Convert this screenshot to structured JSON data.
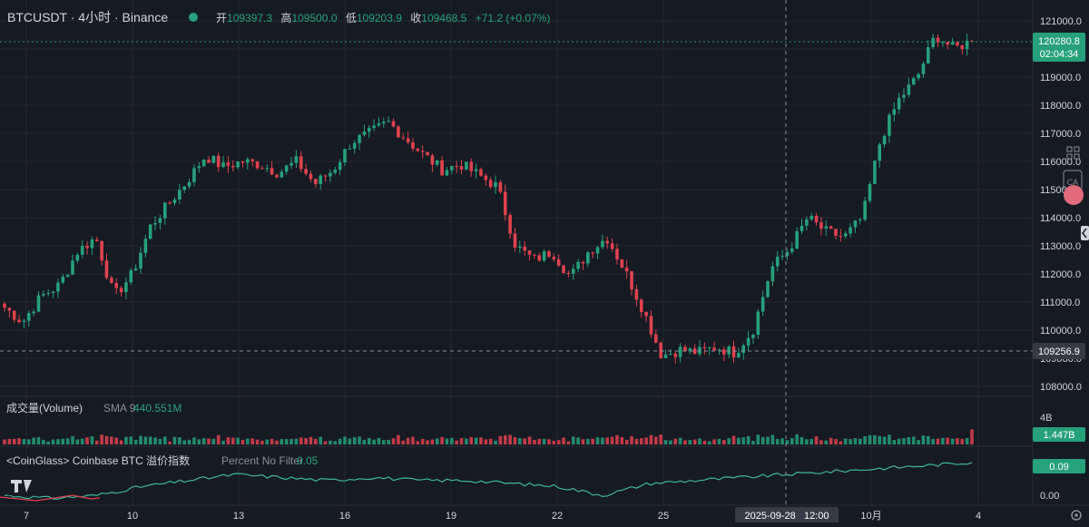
{
  "header": {
    "symbol": "BTCUSDT · 4小时 · Binance",
    "open_label": "开",
    "open_value": "109397.3",
    "high_label": "高",
    "high_value": "109500.0",
    "low_label": "低",
    "low_value": "109203.9",
    "close_label": "收",
    "close_value": "109468.5",
    "change": "+71.2 (+0.07%)"
  },
  "price_axis": {
    "ticks": [
      "121000.0",
      "120000.0",
      "119000.0",
      "118000.0",
      "117000.0",
      "116000.0",
      "115000.0",
      "114000.0",
      "113000.0",
      "112000.0",
      "111000.0",
      "110000.0",
      "109000.0",
      "108000.0"
    ],
    "last_price": "120280.8",
    "countdown": "02:04:34",
    "crosshair_price": "109256.9"
  },
  "volume_pane": {
    "label": "成交量(Volume)",
    "sma_label": "SMA 9",
    "sma_value": "440.551M",
    "axis_tick": "4B",
    "last_value": "1.447B"
  },
  "indicator_pane": {
    "label": "<CoinGlass> Coinbase BTC 溢价指数",
    "param": "Percent No Filter",
    "value": "0.05",
    "axis_tick": "0.00",
    "last_value": "0.09"
  },
  "time_axis": {
    "ticks": [
      "7",
      "10",
      "13",
      "16",
      "19",
      "22",
      "25",
      "10月",
      "4"
    ],
    "crosshair_label": "2025-09-28   12:00"
  },
  "colors": {
    "background": "#161a23",
    "up": "#26a17b",
    "down": "#e0424d",
    "grid": "#232833",
    "text": "#d1d4dc",
    "muted": "#8a8f9c",
    "indicator_line": "#3fb79a"
  },
  "icons": {
    "logo": "tradingview-logo-icon",
    "settings": "gear-icon",
    "toolbar": [
      "grid-icon",
      "wallet-ca-icon",
      "user-avatar-icon",
      "collapse-arrow-icon"
    ]
  },
  "chart_data": {
    "type": "candlestick",
    "symbol": "BTCUSDT",
    "interval": "4h",
    "ylim": [
      108000,
      121000
    ],
    "x": [
      "7",
      "10",
      "13",
      "16",
      "19",
      "22",
      "25",
      "10月",
      "4"
    ],
    "close_path": [
      110800,
      110300,
      111200,
      111600,
      112800,
      113300,
      111200,
      112000,
      113700,
      114500,
      115300,
      116200,
      115800,
      116000,
      115900,
      115600,
      116000,
      115200,
      115700,
      116700,
      117000,
      117400,
      116800,
      116200,
      115700,
      115900,
      115500,
      115100,
      113000,
      112500,
      112800,
      111900,
      112800,
      113300,
      112100,
      110700,
      109100,
      109300,
      109200,
      109400,
      109200,
      110000,
      112200,
      112900,
      114000,
      113500,
      113300,
      114000,
      116800,
      118200,
      119000,
      120500,
      120000,
      120300
    ],
    "volume_range": [
      0,
      4000000000
    ],
    "volume_last": 1447000000,
    "volume_sma9": 440551000,
    "premium_index_last": 0.09,
    "premium_index_ylim": [
      -0.05,
      0.12
    ]
  }
}
